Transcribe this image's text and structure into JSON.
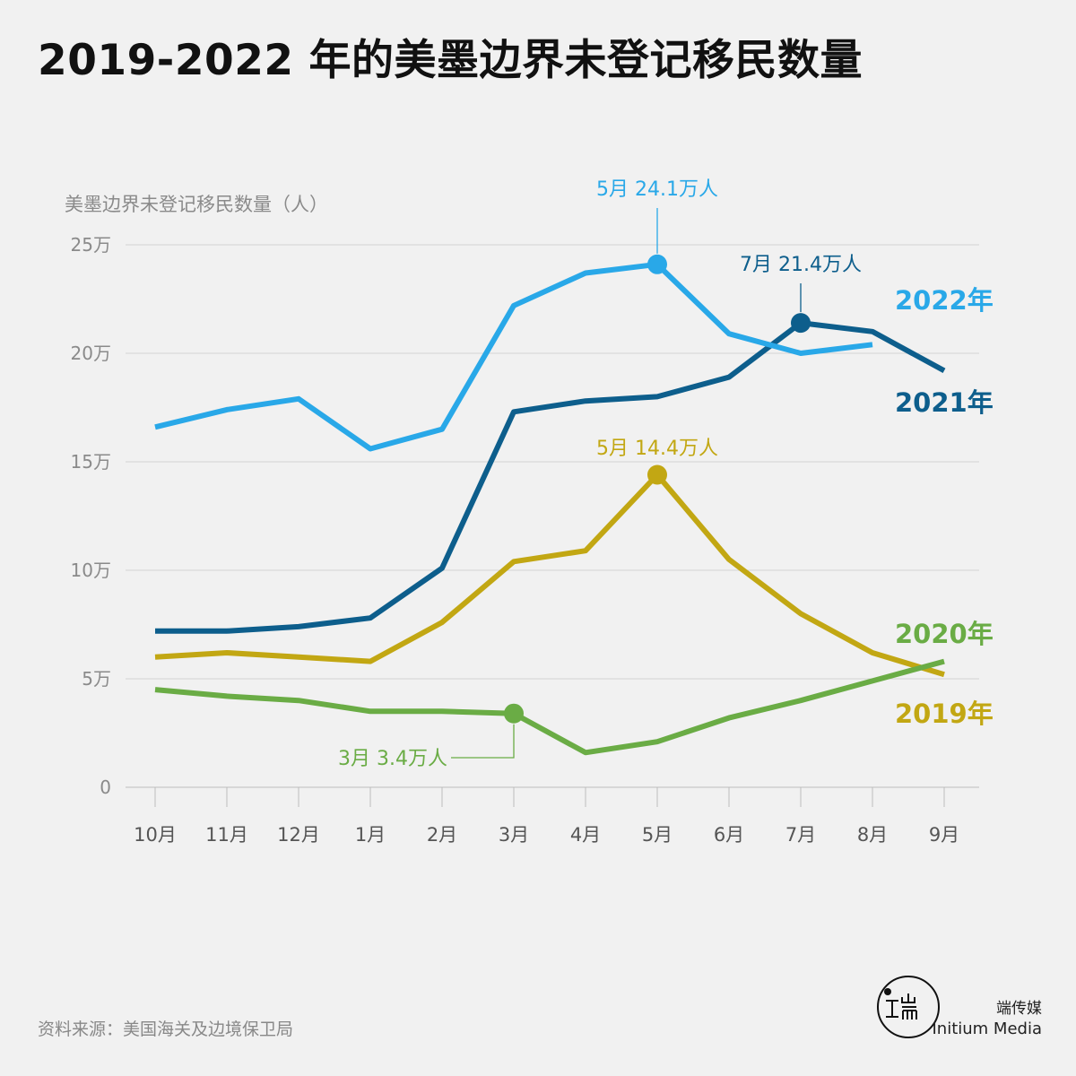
{
  "title": "2019-2022 年的美墨边界未登记移民数量",
  "source": "资料来源：美国海关及边境保卫局",
  "brand": {
    "cn": "端传媒",
    "en": "Initium Media"
  },
  "chart_data": {
    "type": "line",
    "ylabel": "美墨边界未登记移民数量（人）",
    "categories": [
      "10月",
      "11月",
      "12月",
      "1月",
      "2月",
      "3月",
      "4月",
      "5月",
      "6月",
      "7月",
      "8月",
      "9月"
    ],
    "yticks": [
      {
        "value": 0,
        "label": "0"
      },
      {
        "value": 5,
        "label": "5万"
      },
      {
        "value": 10,
        "label": "10万"
      },
      {
        "value": 15,
        "label": "15万"
      },
      {
        "value": 20,
        "label": "20万"
      },
      {
        "value": 25,
        "label": "25万"
      }
    ],
    "ylim": [
      0,
      25
    ],
    "unit": "万",
    "grid": true,
    "series": [
      {
        "name": "2019年",
        "color": "#c2a713",
        "values": [
          6.0,
          6.2,
          6.0,
          5.8,
          7.6,
          10.4,
          10.9,
          14.4,
          10.5,
          8.0,
          6.2,
          5.2
        ],
        "highlight": {
          "index": 7,
          "label": "5月 14.4万人"
        }
      },
      {
        "name": "2020年",
        "color": "#6aac45",
        "values": [
          4.5,
          4.2,
          4.0,
          3.5,
          3.5,
          3.4,
          1.6,
          2.1,
          3.2,
          4.0,
          4.9,
          5.8
        ],
        "highlight": {
          "index": 5,
          "label": "3月 3.4万人"
        }
      },
      {
        "name": "2021年",
        "color": "#0d5e8c",
        "values": [
          7.2,
          7.2,
          7.4,
          7.8,
          10.1,
          17.3,
          17.8,
          18.0,
          18.9,
          21.4,
          21.0,
          19.2
        ],
        "highlight": {
          "index": 9,
          "label": "7月 21.4万人"
        }
      },
      {
        "name": "2022年",
        "color": "#29a8e8",
        "values": [
          16.6,
          17.4,
          17.9,
          15.6,
          16.5,
          22.2,
          23.7,
          24.1,
          20.9,
          20.0,
          20.4,
          null
        ],
        "highlight": {
          "index": 7,
          "label": "5月 24.1万人"
        }
      }
    ]
  }
}
